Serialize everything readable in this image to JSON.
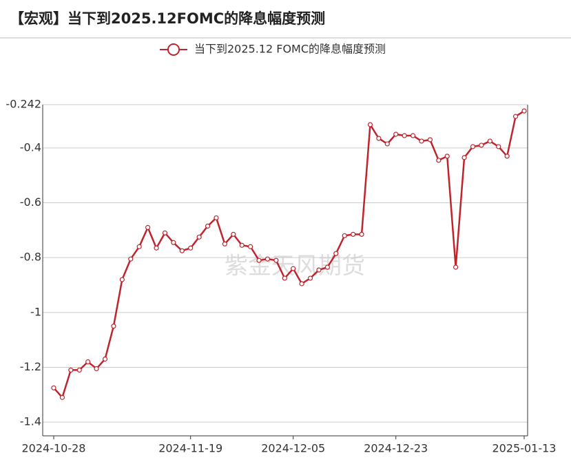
{
  "chart_data": {
    "type": "line",
    "title": "【宏观】当下到2025.12FOMC的降息幅度预测",
    "watermark": "紫金天风期货",
    "categories": [
      "2024-10-28",
      null,
      null,
      null,
      null,
      null,
      null,
      null,
      null,
      null,
      null,
      null,
      null,
      null,
      null,
      null,
      "2024-11-19",
      null,
      null,
      null,
      null,
      null,
      null,
      null,
      null,
      null,
      null,
      null,
      "2024-12-05",
      null,
      null,
      null,
      null,
      null,
      null,
      null,
      null,
      null,
      null,
      null,
      "2024-12-23",
      null,
      null,
      null,
      null,
      null,
      null,
      null,
      null,
      null,
      null,
      null,
      null,
      null,
      null,
      "2025-01-13"
    ],
    "series": [
      {
        "name": "当下到2025.12 FOMC的降息幅度预测",
        "color": "#c0232c",
        "values": [
          -1.275,
          -1.31,
          -1.21,
          -1.21,
          -1.18,
          -1.205,
          -1.17,
          -1.05,
          -0.88,
          -0.805,
          -0.76,
          -0.69,
          -0.765,
          -0.71,
          -0.745,
          -0.775,
          -0.765,
          -0.725,
          -0.685,
          -0.655,
          -0.75,
          -0.715,
          -0.755,
          -0.76,
          -0.81,
          -0.805,
          -0.81,
          -0.875,
          -0.84,
          -0.895,
          -0.875,
          -0.845,
          -0.835,
          -0.785,
          -0.72,
          -0.715,
          -0.715,
          -0.315,
          -0.365,
          -0.385,
          -0.35,
          -0.355,
          -0.355,
          -0.375,
          -0.37,
          -0.445,
          -0.43,
          -0.835,
          -0.435,
          -0.395,
          -0.39,
          -0.375,
          -0.395,
          -0.43,
          -0.285,
          -0.265
        ]
      }
    ],
    "ylim": [
      -1.45,
      -0.242
    ],
    "yticks": [
      -0.242,
      -0.4,
      -0.6,
      -0.8,
      -1,
      -1.2,
      -1.4
    ],
    "grid": true,
    "legend": "top"
  }
}
